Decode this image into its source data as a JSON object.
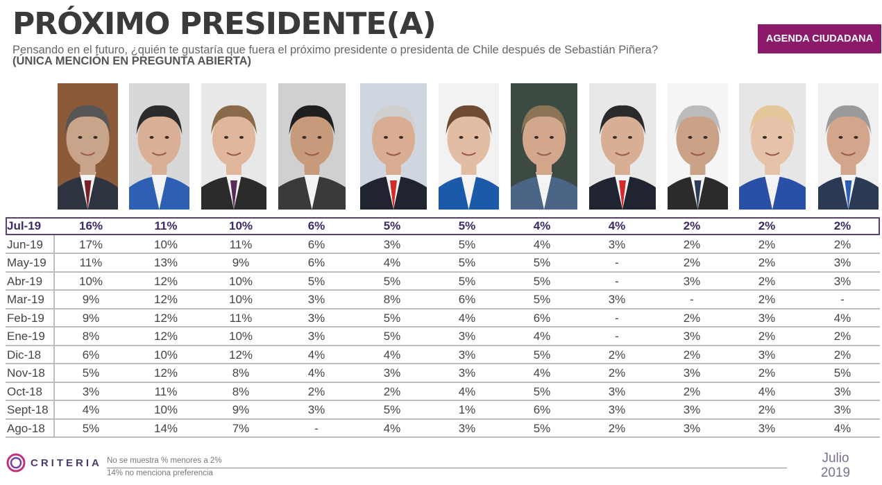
{
  "title": "PRÓXIMO PRESIDENTE(A)",
  "subtitle": {
    "text": "Pensando en el futuro, ¿quién te gustaría que fuera el próximo presidente o presidenta de Chile después de Sebastián Piñera?",
    "emphasis": "(ÚNICA MENCIÓN EN PREGUNTA ABIERTA)"
  },
  "badge": "AGENDA CIUDADANA",
  "colors": {
    "accent": "#8c1a6a",
    "highlight_border": "#5a3f7c",
    "grid": "#bdbdbd"
  },
  "chart_data": {
    "type": "table",
    "highlighted_row": "Jul-19",
    "rows": [
      {
        "label": "Jul-19",
        "values": [
          "16%",
          "11%",
          "10%",
          "6%",
          "5%",
          "5%",
          "4%",
          "4%",
          "2%",
          "2%",
          "2%"
        ]
      },
      {
        "label": "Jun-19",
        "values": [
          "17%",
          "10%",
          "11%",
          "6%",
          "3%",
          "5%",
          "4%",
          "3%",
          "2%",
          "2%",
          "2%"
        ]
      },
      {
        "label": "May-19",
        "values": [
          "11%",
          "13%",
          "9%",
          "6%",
          "4%",
          "5%",
          "5%",
          "-",
          "2%",
          "2%",
          "3%"
        ]
      },
      {
        "label": "Abr-19",
        "values": [
          "10%",
          "12%",
          "10%",
          "5%",
          "5%",
          "5%",
          "5%",
          "-",
          "3%",
          "2%",
          "3%"
        ]
      },
      {
        "label": "Mar-19",
        "values": [
          "9%",
          "12%",
          "10%",
          "3%",
          "8%",
          "6%",
          "5%",
          "3%",
          "-",
          "2%",
          "-"
        ]
      },
      {
        "label": "Feb-19",
        "values": [
          "9%",
          "12%",
          "11%",
          "3%",
          "5%",
          "4%",
          "6%",
          "-",
          "2%",
          "3%",
          "4%"
        ]
      },
      {
        "label": "Ene-19",
        "values": [
          "8%",
          "12%",
          "10%",
          "3%",
          "5%",
          "3%",
          "4%",
          "-",
          "3%",
          "2%",
          "2%"
        ]
      },
      {
        "label": "Dic-18",
        "values": [
          "6%",
          "10%",
          "12%",
          "4%",
          "4%",
          "3%",
          "5%",
          "2%",
          "2%",
          "3%",
          "2%"
        ]
      },
      {
        "label": "Nov-18",
        "values": [
          "5%",
          "12%",
          "8%",
          "4%",
          "3%",
          "3%",
          "4%",
          "2%",
          "3%",
          "2%",
          "5%"
        ]
      },
      {
        "label": "Oct-18",
        "values": [
          "3%",
          "11%",
          "8%",
          "2%",
          "2%",
          "4%",
          "5%",
          "3%",
          "2%",
          "4%",
          "3%"
        ]
      },
      {
        "label": "Sept-18",
        "values": [
          "4%",
          "10%",
          "9%",
          "3%",
          "5%",
          "1%",
          "6%",
          "3%",
          "3%",
          "2%",
          "3%"
        ]
      },
      {
        "label": "Ago-18",
        "values": [
          "5%",
          "14%",
          "7%",
          "-",
          "4%",
          "3%",
          "5%",
          "2%",
          "3%",
          "3%",
          "4%"
        ]
      }
    ]
  },
  "footer": {
    "brand": "CRITERIA",
    "notes": [
      "No se muestra % menores a 2%",
      "14% no menciona preferencia"
    ],
    "date_month": "Julio",
    "date_year": "2019"
  }
}
